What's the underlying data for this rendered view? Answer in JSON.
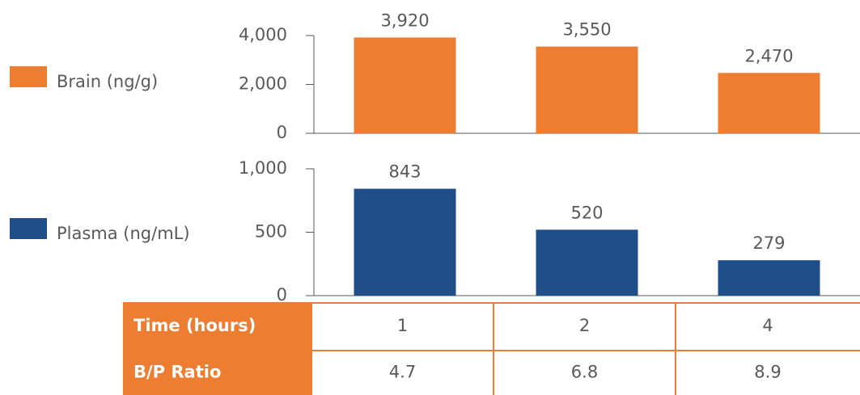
{
  "chart_data": [
    {
      "type": "bar",
      "series": [
        {
          "name": "Brain (ng/g)",
          "color": "#ed7d31",
          "values": [
            3920,
            3550,
            2470
          ],
          "value_labels": [
            "3,920",
            "3,550",
            "2,470"
          ]
        }
      ],
      "ylim": [
        0,
        4000
      ],
      "yticks": [
        0,
        {
          "value": 2000,
          "label": "2,000"
        },
        {
          "value": 4000,
          "label": "4,000"
        }
      ]
    },
    {
      "type": "bar",
      "series": [
        {
          "name": "Plasma (ng/mL)",
          "color": "#1f4e89",
          "values": [
            843,
            520,
            279
          ]
        }
      ],
      "ylim": [
        0,
        1000
      ],
      "yticks": [
        0,
        500,
        {
          "value": 1000,
          "label": "1,000"
        }
      ]
    }
  ],
  "table": {
    "rows": [
      [
        "Time (hours)",
        "1",
        "2",
        "4"
      ],
      [
        "B/P Ratio",
        "4.7",
        "6.8",
        "8.9"
      ]
    ]
  }
}
